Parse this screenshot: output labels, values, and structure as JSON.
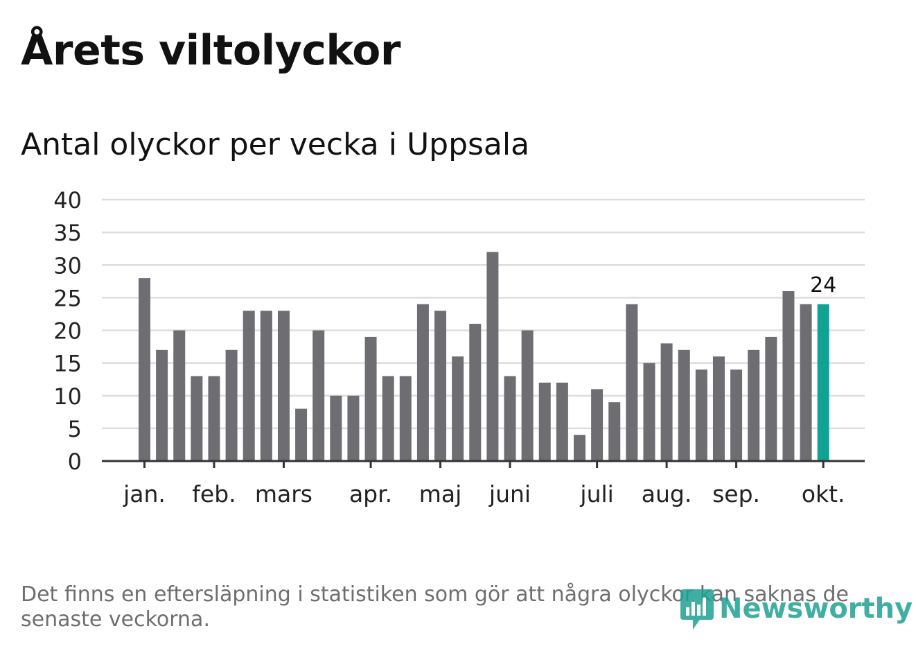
{
  "header": {
    "title": "Årets viltolyckor",
    "subtitle": "Antal olyckor per vecka i Uppsala"
  },
  "chart_data": {
    "type": "bar",
    "title": "Årets viltolyckor",
    "subtitle": "Antal olyckor per vecka i Uppsala",
    "xlabel": "",
    "ylabel": "",
    "ylim": [
      0,
      40
    ],
    "yticks": [
      0,
      5,
      10,
      15,
      20,
      25,
      30,
      35,
      40
    ],
    "grid": true,
    "values": [
      28,
      17,
      20,
      13,
      13,
      17,
      23,
      23,
      23,
      8,
      20,
      10,
      10,
      19,
      13,
      13,
      24,
      23,
      16,
      21,
      32,
      13,
      20,
      12,
      12,
      4,
      11,
      9,
      24,
      15,
      18,
      17,
      14,
      16,
      14,
      17,
      19,
      26,
      24,
      24
    ],
    "month_labels": [
      {
        "label": "jan.",
        "week_index": 0
      },
      {
        "label": "feb.",
        "week_index": 4
      },
      {
        "label": "mars",
        "week_index": 8
      },
      {
        "label": "apr.",
        "week_index": 13
      },
      {
        "label": "maj",
        "week_index": 17
      },
      {
        "label": "juni",
        "week_index": 21
      },
      {
        "label": "juli",
        "week_index": 26
      },
      {
        "label": "aug.",
        "week_index": 30
      },
      {
        "label": "sep.",
        "week_index": 34
      },
      {
        "label": "okt.",
        "week_index": 39
      }
    ],
    "highlight_index": 39,
    "highlight_label": "24",
    "colors": {
      "bar": "#6d6d72",
      "highlight": "#0fa394",
      "grid": "#dddddd",
      "axis": "#333333",
      "text": "#222222"
    }
  },
  "footer": {
    "note": "Det finns en eftersläpning i statistiken som gör att några olyckor kan saknas de senaste veckorna.",
    "brand": "Newsworthy",
    "brand_color": "#1fa193"
  }
}
